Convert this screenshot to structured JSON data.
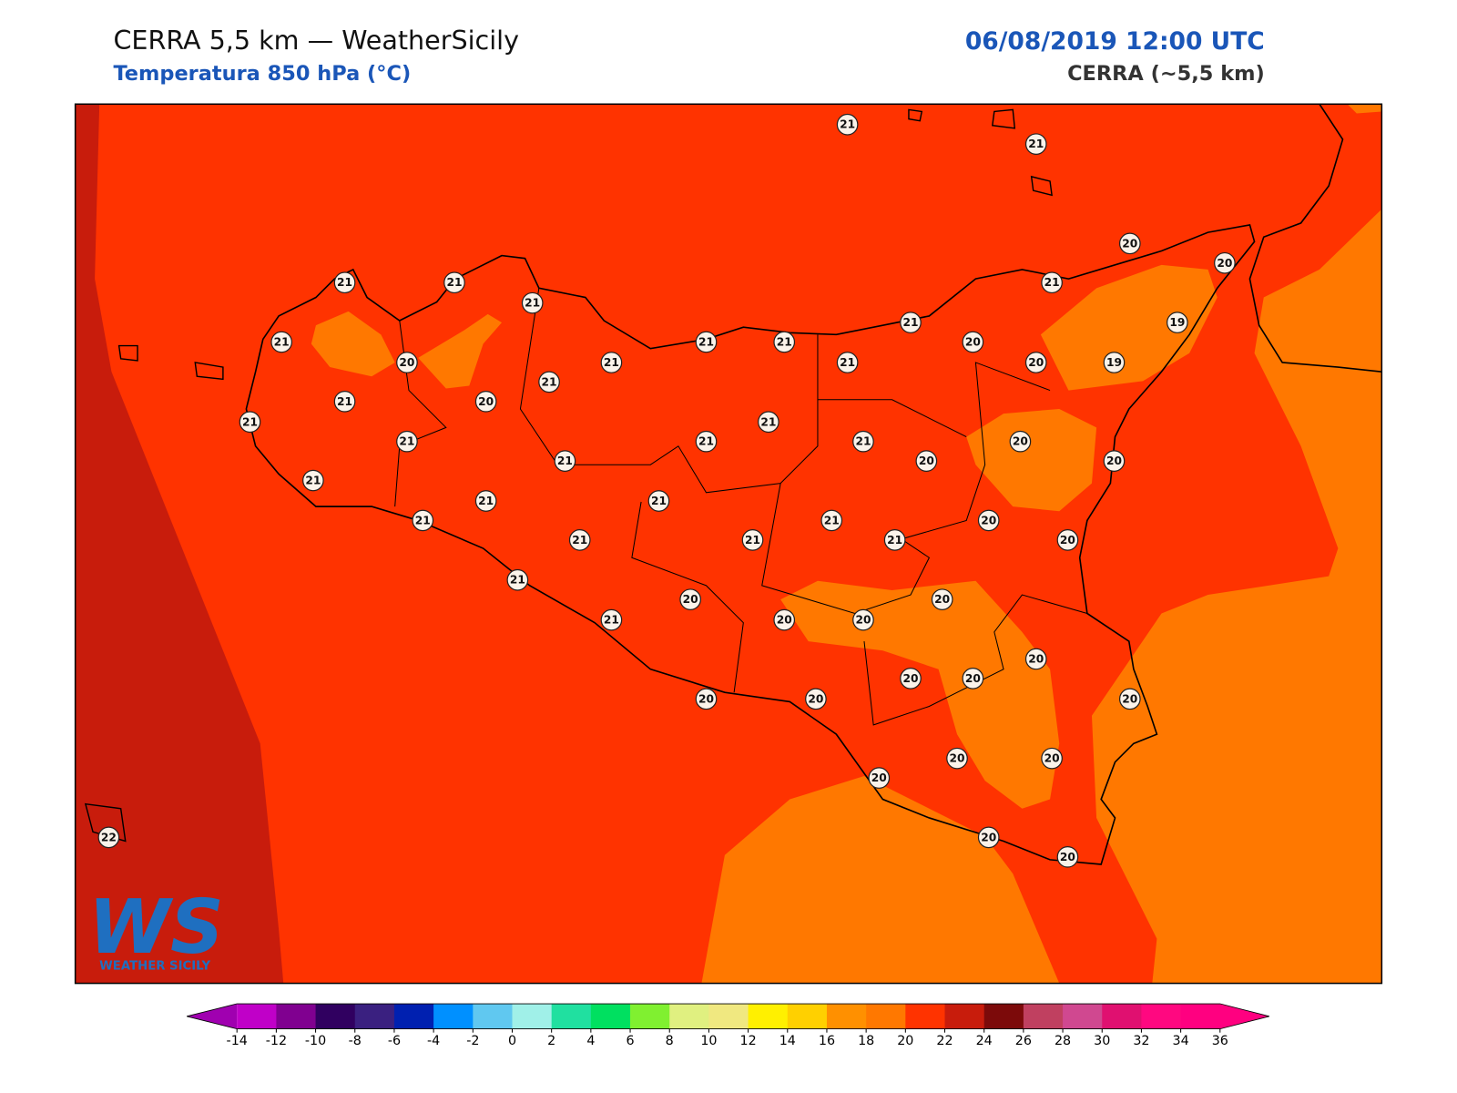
{
  "header": {
    "title": "CERRA 5,5 km — WeatherSicily",
    "subtitle": "Temperatura 850 hPa (°C)",
    "datetime": "06/08/2019 12:00 UTC",
    "model": "CERRA (~5,5 km)"
  },
  "logo": {
    "mark": "WS",
    "text": "WEATHER SICILY"
  },
  "stations": [
    21,
    21,
    20,
    20,
    21,
    21,
    21,
    21,
    21,
    19,
    21,
    21,
    21,
    20,
    20,
    21,
    21,
    20,
    19,
    21,
    21,
    20,
    21,
    21,
    21,
    21,
    21,
    20,
    21,
    20,
    20,
    21,
    21,
    21,
    21,
    21,
    20,
    21,
    21,
    21,
    20,
    21,
    20,
    20,
    21,
    20,
    20,
    20,
    20,
    20,
    20,
    20,
    20,
    20,
    20,
    20,
    22,
    20,
    20
  ],
  "colorbar": {
    "ticks": [
      -14,
      -12,
      -10,
      -8,
      -6,
      -4,
      -2,
      0,
      2,
      4,
      6,
      8,
      10,
      12,
      14,
      16,
      18,
      20,
      22,
      24,
      26,
      28,
      30,
      32,
      34,
      36
    ],
    "colors": [
      "#c000c8",
      "#800090",
      "#300060",
      "#3a2080",
      "#0020b0",
      "#0090ff",
      "#60c8f0",
      "#a0f0e8",
      "#20e0a0",
      "#00e060",
      "#80f030",
      "#e0f080",
      "#f0e880",
      "#fff000",
      "#ffd000",
      "#ff9000",
      "#ff7800",
      "#ff3300",
      "#c81c0c",
      "#7c0a0a",
      "#c04060",
      "#d04890",
      "#e01070",
      "#ff0880",
      "#ff0080"
    ],
    "under_color": "#a000b0",
    "over_color": "#ff0080"
  }
}
